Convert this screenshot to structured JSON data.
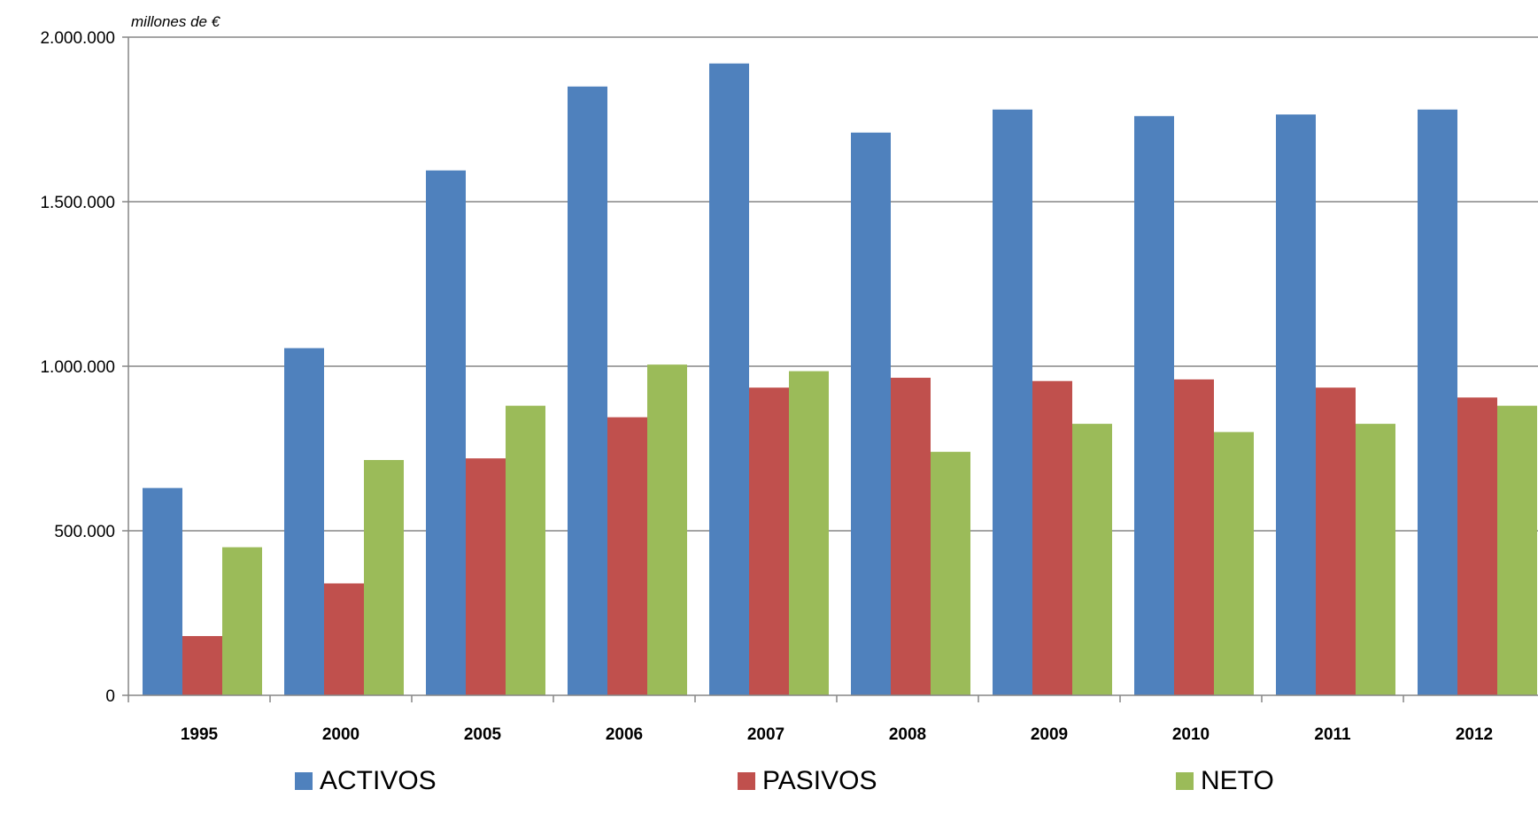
{
  "chart_data": {
    "type": "bar",
    "unit_label": "millones de €",
    "categories": [
      "1995",
      "2000",
      "2005",
      "2006",
      "2007",
      "2008",
      "2009",
      "2010",
      "2011",
      "2012"
    ],
    "series": [
      {
        "name": "ACTIVOS",
        "color": "#4F81BD",
        "values": [
          630000,
          1055000,
          1595000,
          1850000,
          1920000,
          1710000,
          1780000,
          1760000,
          1765000,
          1780000
        ]
      },
      {
        "name": "PASIVOS",
        "color": "#C0504D",
        "values": [
          180000,
          340000,
          720000,
          845000,
          935000,
          965000,
          955000,
          960000,
          935000,
          905000
        ]
      },
      {
        "name": "NETO",
        "color": "#9BBB59",
        "values": [
          450000,
          715000,
          880000,
          1005000,
          985000,
          740000,
          825000,
          800000,
          825000,
          880000
        ]
      }
    ],
    "ylim": [
      0,
      2000000
    ],
    "yticks": [
      0,
      500000,
      1000000,
      1500000,
      2000000
    ],
    "ytick_labels": [
      "0",
      "500.000",
      "1.000.000",
      "1.500.000",
      "2.000.000"
    ],
    "grid": true,
    "legend_position": "bottom"
  }
}
